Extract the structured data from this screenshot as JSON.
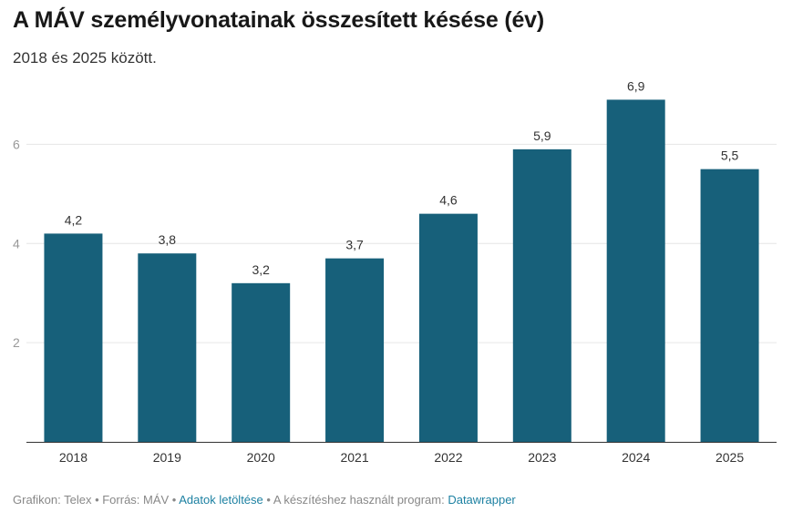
{
  "chart_data": {
    "type": "bar",
    "title": "A MÁV személyvonatainak összesített késése (év)",
    "subtitle": "2018 és 2025 között.",
    "categories": [
      "2018",
      "2019",
      "2020",
      "2021",
      "2022",
      "2023",
      "2024",
      "2025"
    ],
    "values": [
      4.2,
      3.8,
      3.2,
      3.7,
      4.6,
      5.9,
      6.9,
      5.5
    ],
    "value_labels": [
      "4,2",
      "3,8",
      "3,2",
      "3,7",
      "4,6",
      "5,9",
      "6,9",
      "5,5"
    ],
    "yticks": [
      2,
      4,
      6
    ],
    "ylim": [
      0,
      7
    ],
    "xlabel": "",
    "ylabel": "",
    "grid": true,
    "bar_color": "#17607a"
  },
  "footer": {
    "credit": "Grafikon: Telex • Forrás: MÁV • ",
    "download_link": "Adatok letöltése",
    "middle": " • A készítéshez használt program: ",
    "tool_link": "Datawrapper"
  }
}
